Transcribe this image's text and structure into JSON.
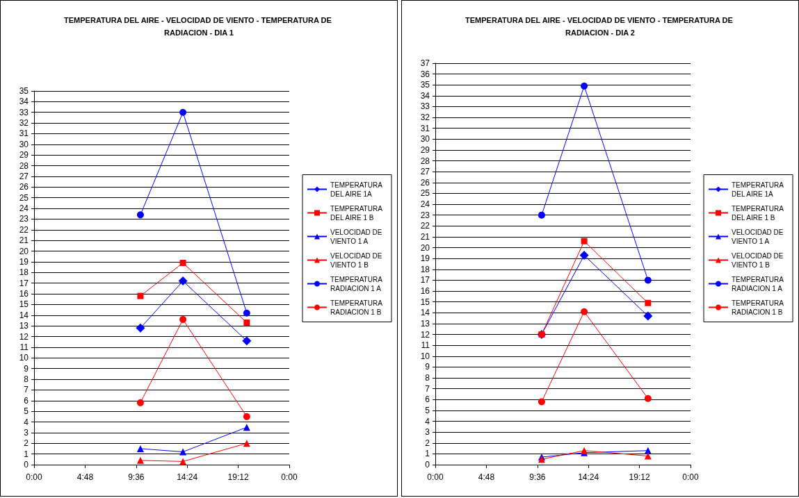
{
  "chart_data": [
    {
      "type": "line",
      "title": "TEMPERATURA DEL AIRE - VELOCIDAD DE VIENTO - TEMPERATURA DE RADIACION - DIA 1",
      "x": [
        10,
        14,
        20
      ],
      "series": [
        {
          "name": "TEMPERATURA DEL AIRE 1A",
          "color": "#0000ff",
          "marker": "diamond",
          "values": [
            12.8,
            17.2,
            11.6
          ]
        },
        {
          "name": "TEMPERATURA DEL AIRE 1 B",
          "color": "#ff0000",
          "marker": "square",
          "values": [
            15.8,
            18.9,
            13.3
          ]
        },
        {
          "name": "VELOCIDAD DE VIENTO 1 A",
          "color": "#0000ff",
          "marker": "triangle",
          "values": [
            1.5,
            1.2,
            3.5
          ]
        },
        {
          "name": "VELOCIDAD DE VIENTO 1 B",
          "color": "#ff0000",
          "marker": "triangle",
          "values": [
            0.4,
            0.3,
            2.0
          ]
        },
        {
          "name": "TEMPERATURA RADIACION 1 A",
          "color": "#0000ff",
          "marker": "circle",
          "values": [
            23.4,
            33.0,
            14.2
          ]
        },
        {
          "name": "TEMPERATURA RADIACION 1 B",
          "color": "#ff0000",
          "marker": "circle",
          "values": [
            5.8,
            13.6,
            4.5
          ]
        }
      ],
      "xlim": [
        0,
        24
      ],
      "xticks": [
        {
          "value": 0,
          "label": "0:00"
        },
        {
          "value": 4.8,
          "label": "4:48"
        },
        {
          "value": 9.6,
          "label": "9:36"
        },
        {
          "value": 14.4,
          "label": "14:24"
        },
        {
          "value": 19.2,
          "label": "19:12"
        },
        {
          "value": 24,
          "label": "0:00"
        }
      ],
      "ylim": [
        0,
        35
      ],
      "yticks": [
        0,
        1,
        2,
        3,
        4,
        5,
        6,
        7,
        8,
        9,
        10,
        11,
        12,
        13,
        14,
        15,
        16,
        17,
        18,
        19,
        20,
        21,
        22,
        23,
        24,
        25,
        26,
        27,
        28,
        29,
        30,
        31,
        32,
        33,
        34,
        35
      ],
      "grid": "y",
      "legend": "right",
      "line_style": "solid"
    },
    {
      "type": "line",
      "title": "TEMPERATURA DEL AIRE - VELOCIDAD DE VIENTO - TEMPERATURA DE RADIACION - DIA 2",
      "x": [
        10,
        14,
        20
      ],
      "series": [
        {
          "name": "TEMPERATURA DEL AIRE 1A",
          "color": "#0000ff",
          "marker": "diamond",
          "values": [
            12.0,
            19.3,
            13.7
          ]
        },
        {
          "name": "TEMPERATURA DEL AIRE 1 B",
          "color": "#ff0000",
          "marker": "square",
          "values": [
            12.0,
            20.6,
            14.9
          ]
        },
        {
          "name": "VELOCIDAD DE VIENTO 1 A",
          "color": "#0000ff",
          "marker": "triangle",
          "values": [
            0.7,
            1.1,
            1.3
          ]
        },
        {
          "name": "VELOCIDAD DE VIENTO 1 B",
          "color": "#ff0000",
          "marker": "triangle",
          "values": [
            0.5,
            1.3,
            0.8
          ]
        },
        {
          "name": "TEMPERATURA RADIACION 1 A",
          "color": "#0000ff",
          "marker": "circle",
          "values": [
            23.0,
            34.9,
            17.0
          ]
        },
        {
          "name": "TEMPERATURA RADIACION 1 B",
          "color": "#ff0000",
          "marker": "circle",
          "values": [
            5.8,
            14.1,
            6.1
          ]
        }
      ],
      "xlim": [
        0,
        24
      ],
      "xticks": [
        {
          "value": 0,
          "label": "0:00"
        },
        {
          "value": 4.8,
          "label": "4:48"
        },
        {
          "value": 9.6,
          "label": "9:36"
        },
        {
          "value": 14.4,
          "label": "14:24"
        },
        {
          "value": 19.2,
          "label": "19:12"
        },
        {
          "value": 24,
          "label": "0:00"
        }
      ],
      "ylim": [
        0,
        37
      ],
      "yticks": [
        0,
        1,
        2,
        3,
        4,
        5,
        6,
        7,
        8,
        9,
        10,
        11,
        12,
        13,
        14,
        15,
        16,
        17,
        18,
        19,
        20,
        21,
        22,
        23,
        24,
        25,
        26,
        27,
        28,
        29,
        30,
        31,
        32,
        33,
        34,
        35,
        36,
        37
      ],
      "grid": "y",
      "legend": "right",
      "line_style": "solid"
    }
  ]
}
